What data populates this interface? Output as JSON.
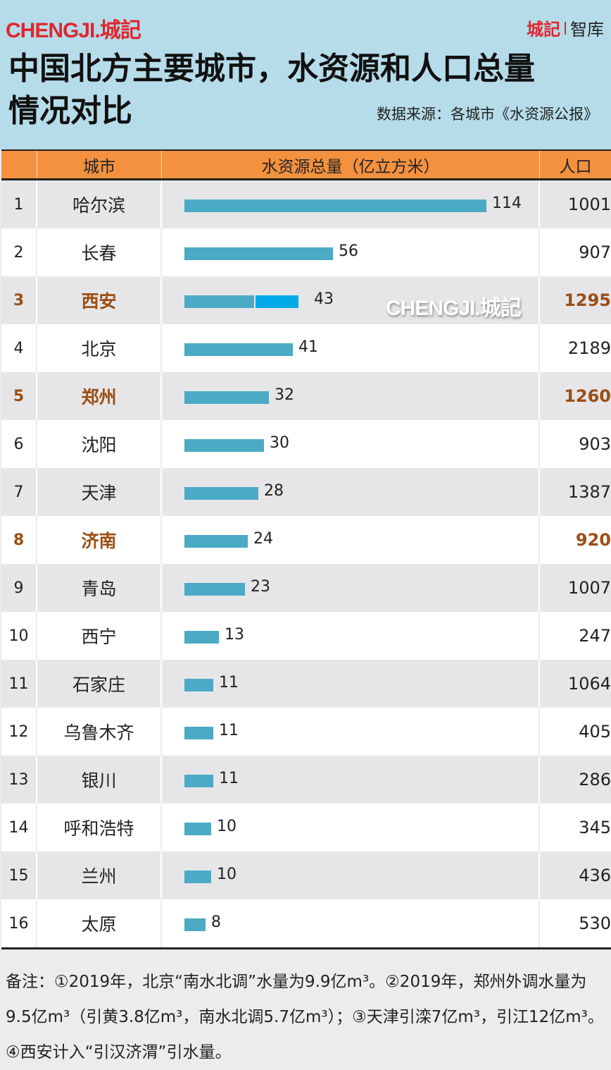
{
  "header": {
    "brand": "CHENGJI.城記",
    "brand_right_red": "城記",
    "brand_right_text": "智库",
    "title_line1": "中国北方主要城市，水资源和人口总量",
    "title_line2": "情况对比",
    "source": "数据来源：各城市《水资源公报》"
  },
  "table": {
    "headers": {
      "rank": "",
      "city": "城市",
      "water": "水资源总量（亿立方米）",
      "pop": "人口"
    },
    "rows": [
      {
        "rank": "1",
        "city": "哈尔滨",
        "water": "114",
        "pop": "1001",
        "highlight": false
      },
      {
        "rank": "2",
        "city": "长春",
        "water": "56",
        "pop": "907",
        "highlight": false
      },
      {
        "rank": "3",
        "city": "西安",
        "water": "43",
        "pop": "1295",
        "highlight": true
      },
      {
        "rank": "4",
        "city": "北京",
        "water": "41",
        "pop": "2189",
        "highlight": false
      },
      {
        "rank": "5",
        "city": "郑州",
        "water": "32",
        "pop": "1260",
        "highlight": true
      },
      {
        "rank": "6",
        "city": "沈阳",
        "water": "30",
        "pop": "903",
        "highlight": false
      },
      {
        "rank": "7",
        "city": "天津",
        "water": "28",
        "pop": "1387",
        "highlight": false
      },
      {
        "rank": "8",
        "city": "济南",
        "water": "24",
        "pop": "920",
        "highlight": true
      },
      {
        "rank": "9",
        "city": "青岛",
        "water": "23",
        "pop": "1007",
        "highlight": false
      },
      {
        "rank": "10",
        "city": "西宁",
        "water": "13",
        "pop": "247",
        "highlight": false
      },
      {
        "rank": "11",
        "city": "石家庄",
        "water": "11",
        "pop": "1064",
        "highlight": false
      },
      {
        "rank": "12",
        "city": "乌鲁木齐",
        "water": "11",
        "pop": "405",
        "highlight": false
      },
      {
        "rank": "13",
        "city": "银川",
        "water": "11",
        "pop": "286",
        "highlight": false
      },
      {
        "rank": "14",
        "city": "呼和浩特",
        "water": "10",
        "pop": "345",
        "highlight": false
      },
      {
        "rank": "15",
        "city": "兰州",
        "water": "10",
        "pop": "436",
        "highlight": false
      },
      {
        "rank": "16",
        "city": "太原",
        "water": "8",
        "pop": "530",
        "highlight": false
      }
    ]
  },
  "watermark": "CHENGJI.城記",
  "note": "备注：①2019年，北京“南水北调”水量为9.9亿m³。②2019年，郑州外调水量为9.5亿m³（引黄3.8亿m³，南水北调5.7亿m³）；③天津引滦7亿m³，引江12亿m³。④西安计入“引汉济渭”引水量。",
  "colors": {
    "header_bg": "#b6dce9",
    "table_header": "#f3913f",
    "bar": "#4baac5",
    "bar_extra": "#02abe7",
    "highlight": "#9b4e14",
    "brand_red": "#e0262f"
  },
  "chart_data": {
    "type": "bar",
    "orientation": "horizontal",
    "title": "中国北方主要城市，水资源和人口总量情况对比",
    "subtitle": "数据来源：各城市《水资源公报》",
    "xlabel": "水资源总量（亿立方米）",
    "categories": [
      "哈尔滨",
      "长春",
      "西安",
      "北京",
      "郑州",
      "沈阳",
      "天津",
      "济南",
      "青岛",
      "西宁",
      "石家庄",
      "乌鲁木齐",
      "银川",
      "呼和浩特",
      "兰州",
      "太原"
    ],
    "series": [
      {
        "name": "水资源总量（亿立方米）",
        "values": [
          114,
          56,
          43,
          41,
          32,
          30,
          28,
          24,
          23,
          13,
          11,
          11,
          11,
          10,
          10,
          8
        ]
      },
      {
        "name": "人口",
        "values": [
          1001,
          907,
          1295,
          2189,
          1260,
          903,
          1387,
          920,
          1007,
          247,
          1064,
          405,
          286,
          345,
          436,
          530
        ]
      }
    ],
    "highlighted": [
      "西安",
      "郑州",
      "济南"
    ],
    "annotations": [
      "西安 bar includes a lighter segment for 引汉济渭 transfer"
    ],
    "grid": false,
    "legend": "none"
  }
}
